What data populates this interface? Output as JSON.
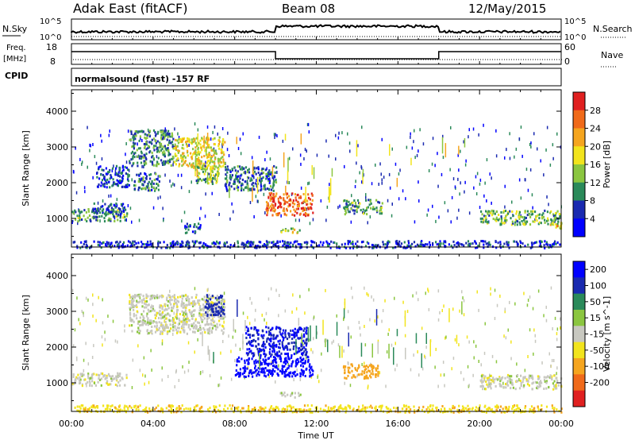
{
  "header": {
    "site": "Adak East (fitACF)",
    "beam": "Beam 08",
    "date": "12/May/2015"
  },
  "panels": {
    "nsky_label": "N.Sky",
    "nsearch_label": "N.Search",
    "freq_label_1": "Freq.",
    "freq_label_2": "[MHz]",
    "nave_label": "Nave",
    "cpid_label": "CPID",
    "cpid_text": "normalsound (fast) -157 RF",
    "nsky_ticks": [
      "10^5",
      "10^0"
    ],
    "freq_ticks": [
      "18",
      "8"
    ],
    "nave_ticks": [
      "60",
      "0"
    ]
  },
  "chart_data": [
    {
      "type": "heatmap",
      "name": "power",
      "xlabel": "Time UT",
      "ylabel": "Slant Range [km]",
      "xlim": [
        0,
        24
      ],
      "ylim": [
        200,
        4600
      ],
      "x_ticks": [
        "00:00",
        "04:00",
        "08:00",
        "12:00",
        "16:00",
        "20:00",
        "00:00"
      ],
      "y_ticks": [
        1000,
        2000,
        3000,
        4000
      ],
      "colorbar_label": "Power [dB]",
      "colorbar_ticks": [
        4,
        8,
        12,
        16,
        20,
        24,
        28
      ],
      "colorbar_colors": [
        "#0000ff",
        "#1a2ab0",
        "#2b8a5a",
        "#8bc640",
        "#f2e41d",
        "#f5a51f",
        "#f06a1a",
        "#e02020"
      ],
      "colorbar_range": [
        0,
        32
      ],
      "regions": [
        {
          "t0": 0.0,
          "t1": 2.7,
          "r0": 950,
          "r1": 1300,
          "level": 0.35
        },
        {
          "t0": 1.0,
          "t1": 2.6,
          "r0": 1150,
          "r1": 1450,
          "level": 0.2
        },
        {
          "t0": 2.8,
          "t1": 5.0,
          "r0": 2500,
          "r1": 3500,
          "level": 0.3
        },
        {
          "t0": 5.0,
          "t1": 7.5,
          "r0": 2400,
          "r1": 3300,
          "level": 0.55
        },
        {
          "t0": 6.0,
          "t1": 7.2,
          "r0": 2000,
          "r1": 2500,
          "level": 0.4
        },
        {
          "t0": 3.0,
          "t1": 4.3,
          "r0": 1800,
          "r1": 2300,
          "level": 0.25
        },
        {
          "t0": 1.2,
          "t1": 2.8,
          "r0": 1900,
          "r1": 2500,
          "level": 0.2
        },
        {
          "t0": 7.5,
          "t1": 10.0,
          "r0": 1800,
          "r1": 2500,
          "level": 0.25
        },
        {
          "t0": 9.5,
          "t1": 11.8,
          "r0": 1100,
          "r1": 1750,
          "level": 0.8
        },
        {
          "t0": 10.2,
          "t1": 11.2,
          "r0": 620,
          "r1": 760,
          "level": 0.5
        },
        {
          "t0": 5.5,
          "t1": 6.3,
          "r0": 600,
          "r1": 900,
          "level": 0.2
        },
        {
          "t0": 13.3,
          "t1": 15.2,
          "r0": 1150,
          "r1": 1550,
          "level": 0.35
        },
        {
          "t0": 20.0,
          "t1": 24.0,
          "r0": 850,
          "r1": 1250,
          "level": 0.4
        },
        {
          "t0": 23.3,
          "t1": 24.0,
          "r0": 750,
          "r1": 950,
          "level": 0.6
        },
        {
          "t0": 0.0,
          "t1": 24.0,
          "r0": 200,
          "r1": 400,
          "level": 0.15
        }
      ]
    },
    {
      "type": "heatmap",
      "name": "velocity",
      "xlabel": "Time UT",
      "ylabel": "Slant Range [km]",
      "xlim": [
        0,
        24
      ],
      "ylim": [
        200,
        4600
      ],
      "x_ticks": [
        "00:00",
        "04:00",
        "08:00",
        "12:00",
        "16:00",
        "20:00",
        "00:00"
      ],
      "y_ticks": [
        1000,
        2000,
        3000,
        4000
      ],
      "colorbar_label": "Velocity [m s^-1]",
      "colorbar_ticks": [
        200,
        100,
        50,
        15,
        -15,
        -50,
        -100,
        -200
      ],
      "colorbar_colors": [
        "#0000ff",
        "#1a2ab0",
        "#2b8a5a",
        "#8bc640",
        "#c8c8c0",
        "#f2e41d",
        "#f5a51f",
        "#f06a1a",
        "#e02020"
      ],
      "regions": [
        {
          "t0": 0.0,
          "t1": 2.7,
          "r0": 950,
          "r1": 1300,
          "value": 0
        },
        {
          "t0": 2.8,
          "t1": 7.5,
          "r0": 2400,
          "r1": 3500,
          "value": 0
        },
        {
          "t0": 6.5,
          "t1": 7.5,
          "r0": 2900,
          "r1": 3500,
          "value": 160
        },
        {
          "t0": 8.0,
          "t1": 11.8,
          "r0": 1200,
          "r1": 1800,
          "value": 220
        },
        {
          "t0": 8.5,
          "t1": 11.5,
          "r0": 1800,
          "r1": 2600,
          "value": 200
        },
        {
          "t0": 10.2,
          "t1": 11.2,
          "r0": 620,
          "r1": 760,
          "value": 5
        },
        {
          "t0": 13.3,
          "t1": 15.0,
          "r0": 1150,
          "r1": 1550,
          "value": -80
        },
        {
          "t0": 20.0,
          "t1": 24.0,
          "r0": 850,
          "r1": 1250,
          "value": 0
        },
        {
          "t0": 0.0,
          "t1": 24.0,
          "r0": 200,
          "r1": 400,
          "value": -40
        }
      ]
    }
  ]
}
